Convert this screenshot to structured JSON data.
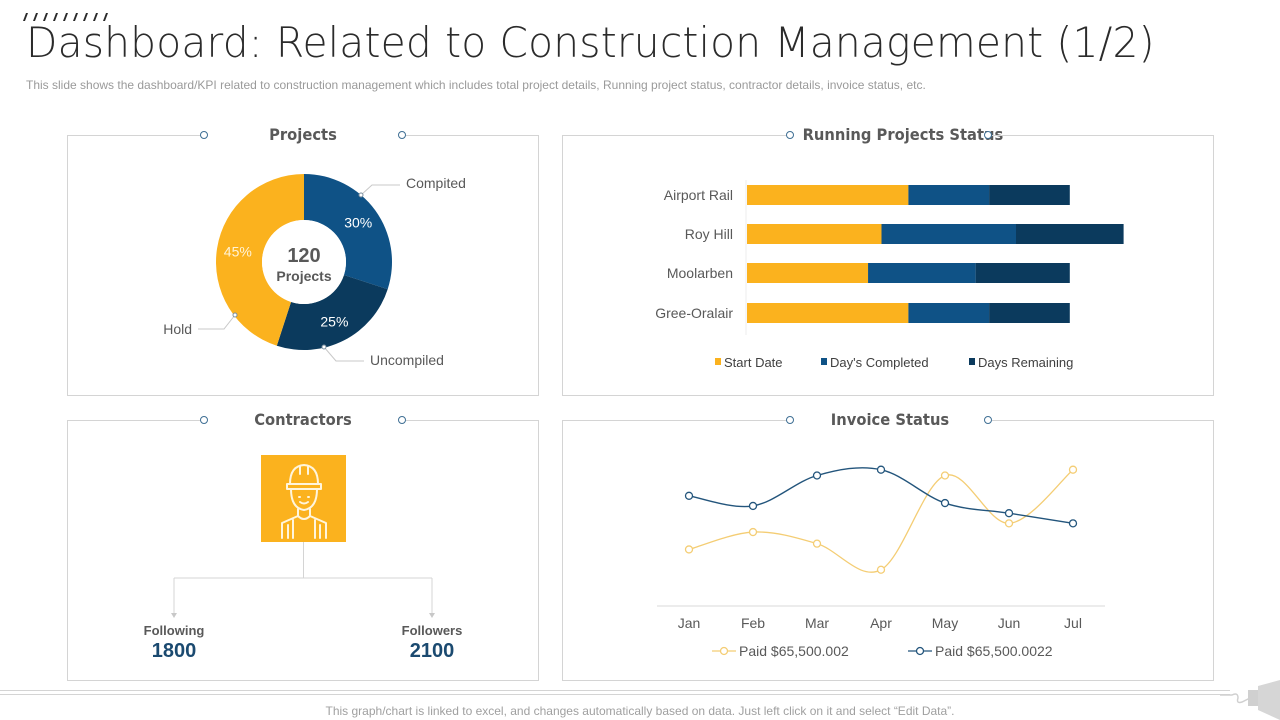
{
  "header": {
    "title": "Dashboard: Related to Construction Management (1/2)",
    "subtitle": "This slide shows the dashboard/KPI related to construction management which includes total project details, Running project status, contractor details, invoice status, etc."
  },
  "colors": {
    "yellow": "#fbb21e",
    "blue": "#0f5286",
    "navy": "#0b3a5d",
    "line_blue": "#23557c",
    "line_yellow": "#f4cd74",
    "border": "#d4d4d4"
  },
  "projects": {
    "title": "Projects",
    "center_value": "120",
    "center_label": "Projects"
  },
  "running": {
    "title": "Running Projects  Status"
  },
  "contractors": {
    "title": "Contractors",
    "icon": "construction-worker-icon",
    "following_label": "Following",
    "following_value": "1800",
    "followers_label": "Followers",
    "followers_value": "2100"
  },
  "invoice": {
    "title": "Invoice Status"
  },
  "footer": {
    "note": "This graph/chart is linked to excel,  and changes automatically based on data. Just left click on it and select “Edit Data”."
  },
  "chart_data": [
    {
      "type": "pie",
      "title": "Projects",
      "donut": true,
      "center_text": "120 Projects",
      "slices": [
        {
          "label": "Compited",
          "value": 30,
          "display": "30%",
          "color": "#0f5286"
        },
        {
          "label": "Uncompiled",
          "value": 25,
          "display": "25%",
          "color": "#0b3a5d"
        },
        {
          "label": "Hold",
          "value": 45,
          "display": "45%",
          "color": "#fbb21e"
        }
      ]
    },
    {
      "type": "bar",
      "orientation": "horizontal",
      "stacked": true,
      "title": "Running Projects  Status",
      "categories": [
        "Airport Rail",
        "Roy Hill",
        "Moolarben",
        "Gree-Oralair"
      ],
      "series": [
        {
          "name": "Start Date",
          "color": "#fbb21e",
          "values": [
            30,
            25,
            22.5,
            30
          ]
        },
        {
          "name": "Day's Completed",
          "color": "#0f5286",
          "values": [
            15,
            25,
            20,
            15
          ]
        },
        {
          "name": "Days Remaining",
          "color": "#0b3a5d",
          "values": [
            15,
            20,
            17.5,
            15
          ]
        }
      ],
      "xlim": [
        0,
        70
      ],
      "legend": "bottom",
      "grid": false
    },
    {
      "type": "line",
      "smooth": true,
      "title": "Invoice Status",
      "x": [
        "Jan",
        "Feb",
        "Mar",
        "Apr",
        "May",
        "Jun",
        "Jul"
      ],
      "series": [
        {
          "name": "Paid $65,500.002",
          "color": "#f4cd74",
          "values": [
            3.9,
            5.1,
            4.3,
            2.5,
            9.0,
            5.7,
            9.4
          ]
        },
        {
          "name": "Paid $65,500.0022",
          "color": "#23557c",
          "values": [
            7.6,
            6.9,
            9.0,
            9.4,
            7.1,
            6.4,
            5.7
          ]
        }
      ],
      "ylim": [
        0,
        10
      ],
      "legend": "bottom",
      "grid": false
    }
  ]
}
